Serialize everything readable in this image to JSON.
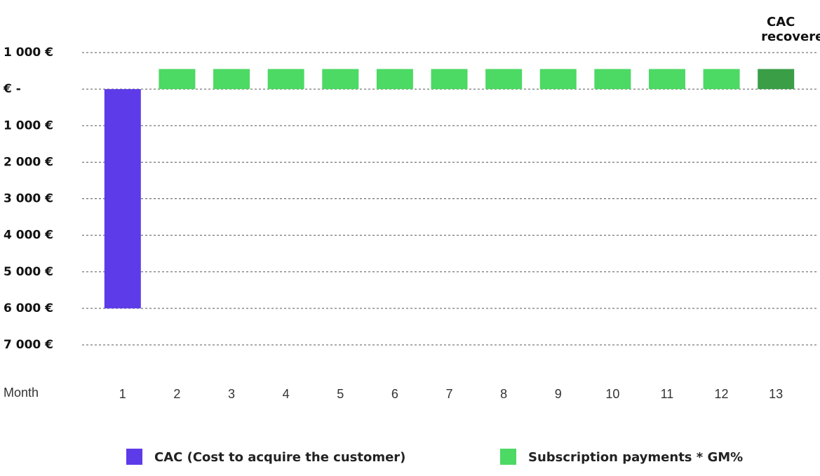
{
  "chart_data": {
    "type": "bar",
    "x_label": "Month",
    "categories": [
      "1",
      "2",
      "3",
      "4",
      "5",
      "6",
      "7",
      "8",
      "9",
      "10",
      "11",
      "12",
      "13"
    ],
    "series": [
      {
        "name": "CAC (Cost to acquire the customer)",
        "color": "#5e3be9",
        "values": [
          -6000,
          null,
          null,
          null,
          null,
          null,
          null,
          null,
          null,
          null,
          null,
          null,
          null
        ]
      },
      {
        "name": "Subscription payments * GM%",
        "color": "#4cd964",
        "values": [
          null,
          550,
          550,
          550,
          550,
          550,
          550,
          550,
          550,
          550,
          550,
          550,
          550
        ]
      }
    ],
    "annotation": {
      "lines": [
        "CAC",
        "recovered"
      ],
      "category": "13",
      "color": "#3a9e47"
    },
    "ylim": [
      -7000,
      1000
    ],
    "yticks": [
      {
        "value": 1000,
        "label": "1 000 €"
      },
      {
        "value": 0,
        "label": "€ -"
      },
      {
        "value": -1000,
        "label": "1 000 €"
      },
      {
        "value": -2000,
        "label": "2 000 €"
      },
      {
        "value": -3000,
        "label": "3 000 €"
      },
      {
        "value": -4000,
        "label": "4 000 €"
      },
      {
        "value": -5000,
        "label": "5 000 €"
      },
      {
        "value": -6000,
        "label": "6 000 €"
      },
      {
        "value": -7000,
        "label": "7 000 €"
      }
    ],
    "grid": true,
    "legend": "bottom"
  }
}
